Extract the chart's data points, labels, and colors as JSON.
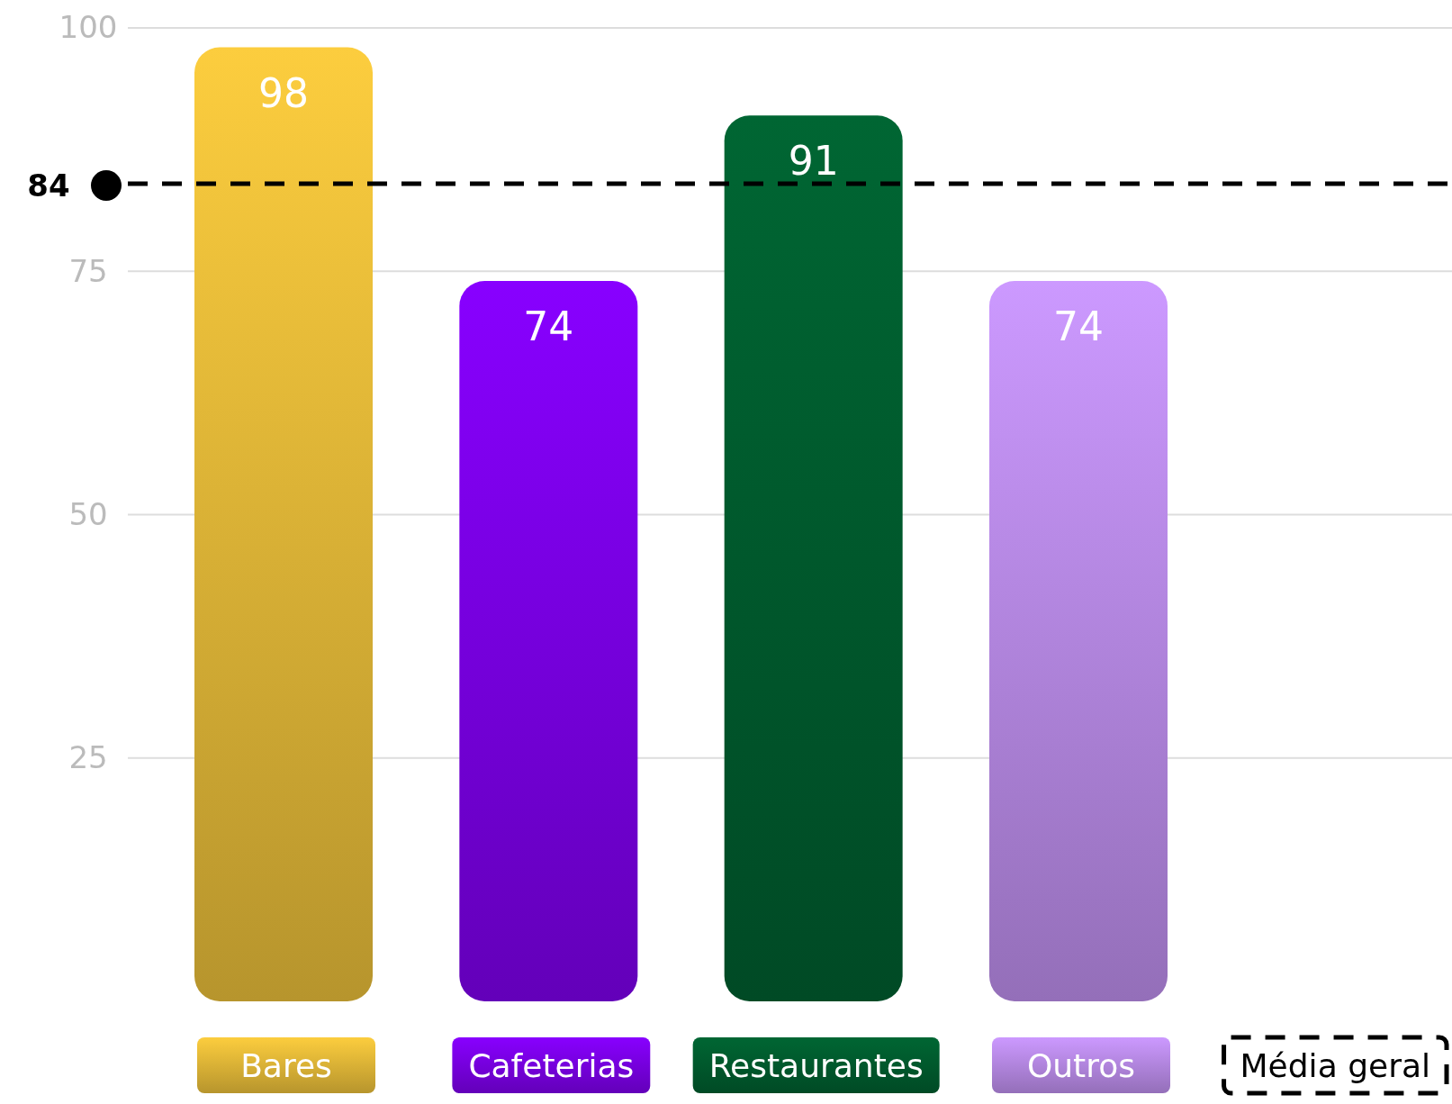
{
  "chart_data": {
    "type": "bar",
    "categories": [
      "Bares",
      "Cafeterias",
      "Restaurantes",
      "Outros"
    ],
    "values": [
      98,
      74,
      91,
      74
    ],
    "colors": [
      "#fccd3e",
      "#8800ff",
      "#006633",
      "#cc99ff"
    ],
    "annotations": [
      "84"
    ],
    "ylim": [
      0,
      100
    ],
    "yticks": [
      25,
      50,
      75,
      100
    ],
    "grid": "y",
    "data_labels": true,
    "legend": "bottom",
    "ref_lines": [
      {
        "axis": "y",
        "value": 84,
        "label": "Média geral",
        "color": "#000000",
        "line_style": "dashed"
      }
    ]
  }
}
